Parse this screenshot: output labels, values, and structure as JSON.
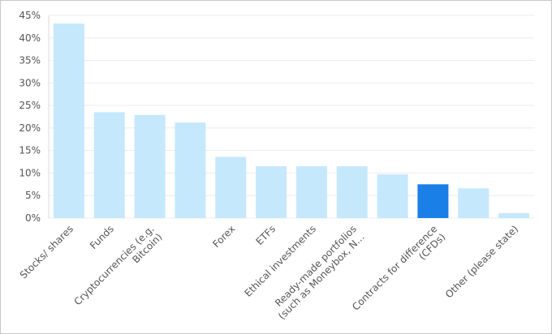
{
  "chart_data": {
    "type": "bar",
    "categories": [
      "Stocks/ shares",
      "Funds",
      "Cryptocurrencies (e.g. Bitcoin)",
      null,
      "Forex",
      "ETFs",
      "Ethical investments",
      "Ready-made portfolios (such as Moneybox, N…",
      null,
      "Contracts for difference (CFDs)",
      null,
      "Other (please state)"
    ],
    "values": [
      43.2,
      23.5,
      22.9,
      21.2,
      13.6,
      11.5,
      11.5,
      11.5,
      9.7,
      7.5,
      6.6,
      1.1
    ],
    "colors": [
      "#c5e8fc",
      "#c5e8fc",
      "#c5e8fc",
      "#c5e8fc",
      "#c5e8fc",
      "#c5e8fc",
      "#c5e8fc",
      "#c5e8fc",
      "#c5e8fc",
      "#1a7fe6",
      "#c5e8fc",
      "#c5e8fc"
    ],
    "ylim": [
      0,
      45
    ],
    "yticks": [
      {
        "value": 0,
        "label": "0%"
      },
      {
        "value": 5,
        "label": "5%"
      },
      {
        "value": 10,
        "label": "10%"
      },
      {
        "value": 15,
        "label": "15%"
      },
      {
        "value": 20,
        "label": "20%"
      },
      {
        "value": 25,
        "label": "25%"
      },
      {
        "value": 30,
        "label": "30%"
      },
      {
        "value": 35,
        "label": "35%"
      },
      {
        "value": 40,
        "label": "40%"
      },
      {
        "value": 45,
        "label": "45%"
      }
    ],
    "grid": true
  }
}
